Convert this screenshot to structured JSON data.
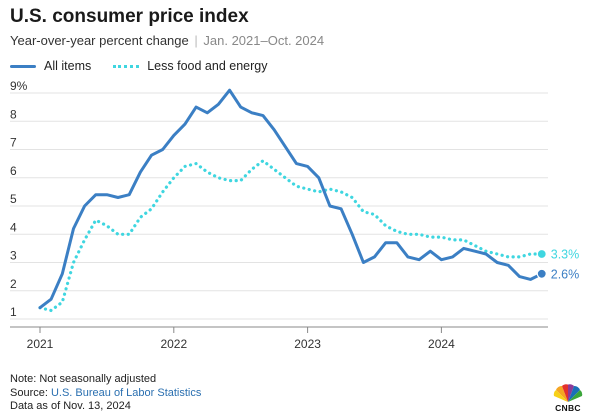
{
  "header": {
    "title": "U.S. consumer price index",
    "subtitle_main": "Year-over-year percent change",
    "subtitle_sep": "|",
    "subtitle_range": "Jan. 2021–Oct. 2024"
  },
  "legend": {
    "all_items": "All items",
    "core": "Less food and energy"
  },
  "colors": {
    "all_items": "#3b7fc4",
    "core": "#3fd6e0",
    "grid": "#e3e3e3"
  },
  "chart_data": {
    "type": "line",
    "x_start": "2021-01",
    "x_end": "2024-10",
    "ylim": [
      1,
      9
    ],
    "yticks": [
      "1",
      "2",
      "3",
      "4",
      "5",
      "6",
      "7",
      "8",
      "9%"
    ],
    "xticks": [
      {
        "label": "2021",
        "month_index": 0
      },
      {
        "label": "2022",
        "month_index": 12
      },
      {
        "label": "2023",
        "month_index": 24
      },
      {
        "label": "2024",
        "month_index": 36
      }
    ],
    "grid": "horizontal",
    "legend_position": "top-left",
    "series": [
      {
        "name": "All items",
        "style": "solid",
        "end_label": "2.6%",
        "values": [
          1.4,
          1.7,
          2.6,
          4.2,
          5.0,
          5.4,
          5.4,
          5.3,
          5.4,
          6.2,
          6.8,
          7.0,
          7.5,
          7.9,
          8.5,
          8.3,
          8.6,
          9.1,
          8.5,
          8.3,
          8.2,
          7.7,
          7.1,
          6.5,
          6.4,
          6.0,
          5.0,
          4.9,
          4.0,
          3.0,
          3.2,
          3.7,
          3.7,
          3.2,
          3.1,
          3.4,
          3.1,
          3.2,
          3.5,
          3.4,
          3.3,
          3.0,
          2.9,
          2.5,
          2.4,
          2.6
        ]
      },
      {
        "name": "Less food and energy",
        "style": "dotted",
        "end_label": "3.3%",
        "values": [
          1.4,
          1.3,
          1.6,
          3.0,
          3.8,
          4.5,
          4.3,
          4.0,
          4.0,
          4.6,
          4.9,
          5.5,
          6.0,
          6.4,
          6.5,
          6.2,
          6.0,
          5.9,
          5.9,
          6.3,
          6.6,
          6.3,
          6.0,
          5.7,
          5.6,
          5.5,
          5.6,
          5.5,
          5.3,
          4.8,
          4.7,
          4.3,
          4.1,
          4.0,
          4.0,
          3.9,
          3.9,
          3.8,
          3.8,
          3.6,
          3.4,
          3.3,
          3.2,
          3.2,
          3.3,
          3.3
        ]
      }
    ]
  },
  "footer": {
    "note": "Note: Not seasonally adjusted",
    "source_prefix": "Source: ",
    "source_link": "U.S. Bureau of Labor Statistics",
    "date": "Data as of Nov. 13, 2024"
  },
  "logo": {
    "text": "CNBC",
    "icon": "peacock-logo-icon"
  }
}
